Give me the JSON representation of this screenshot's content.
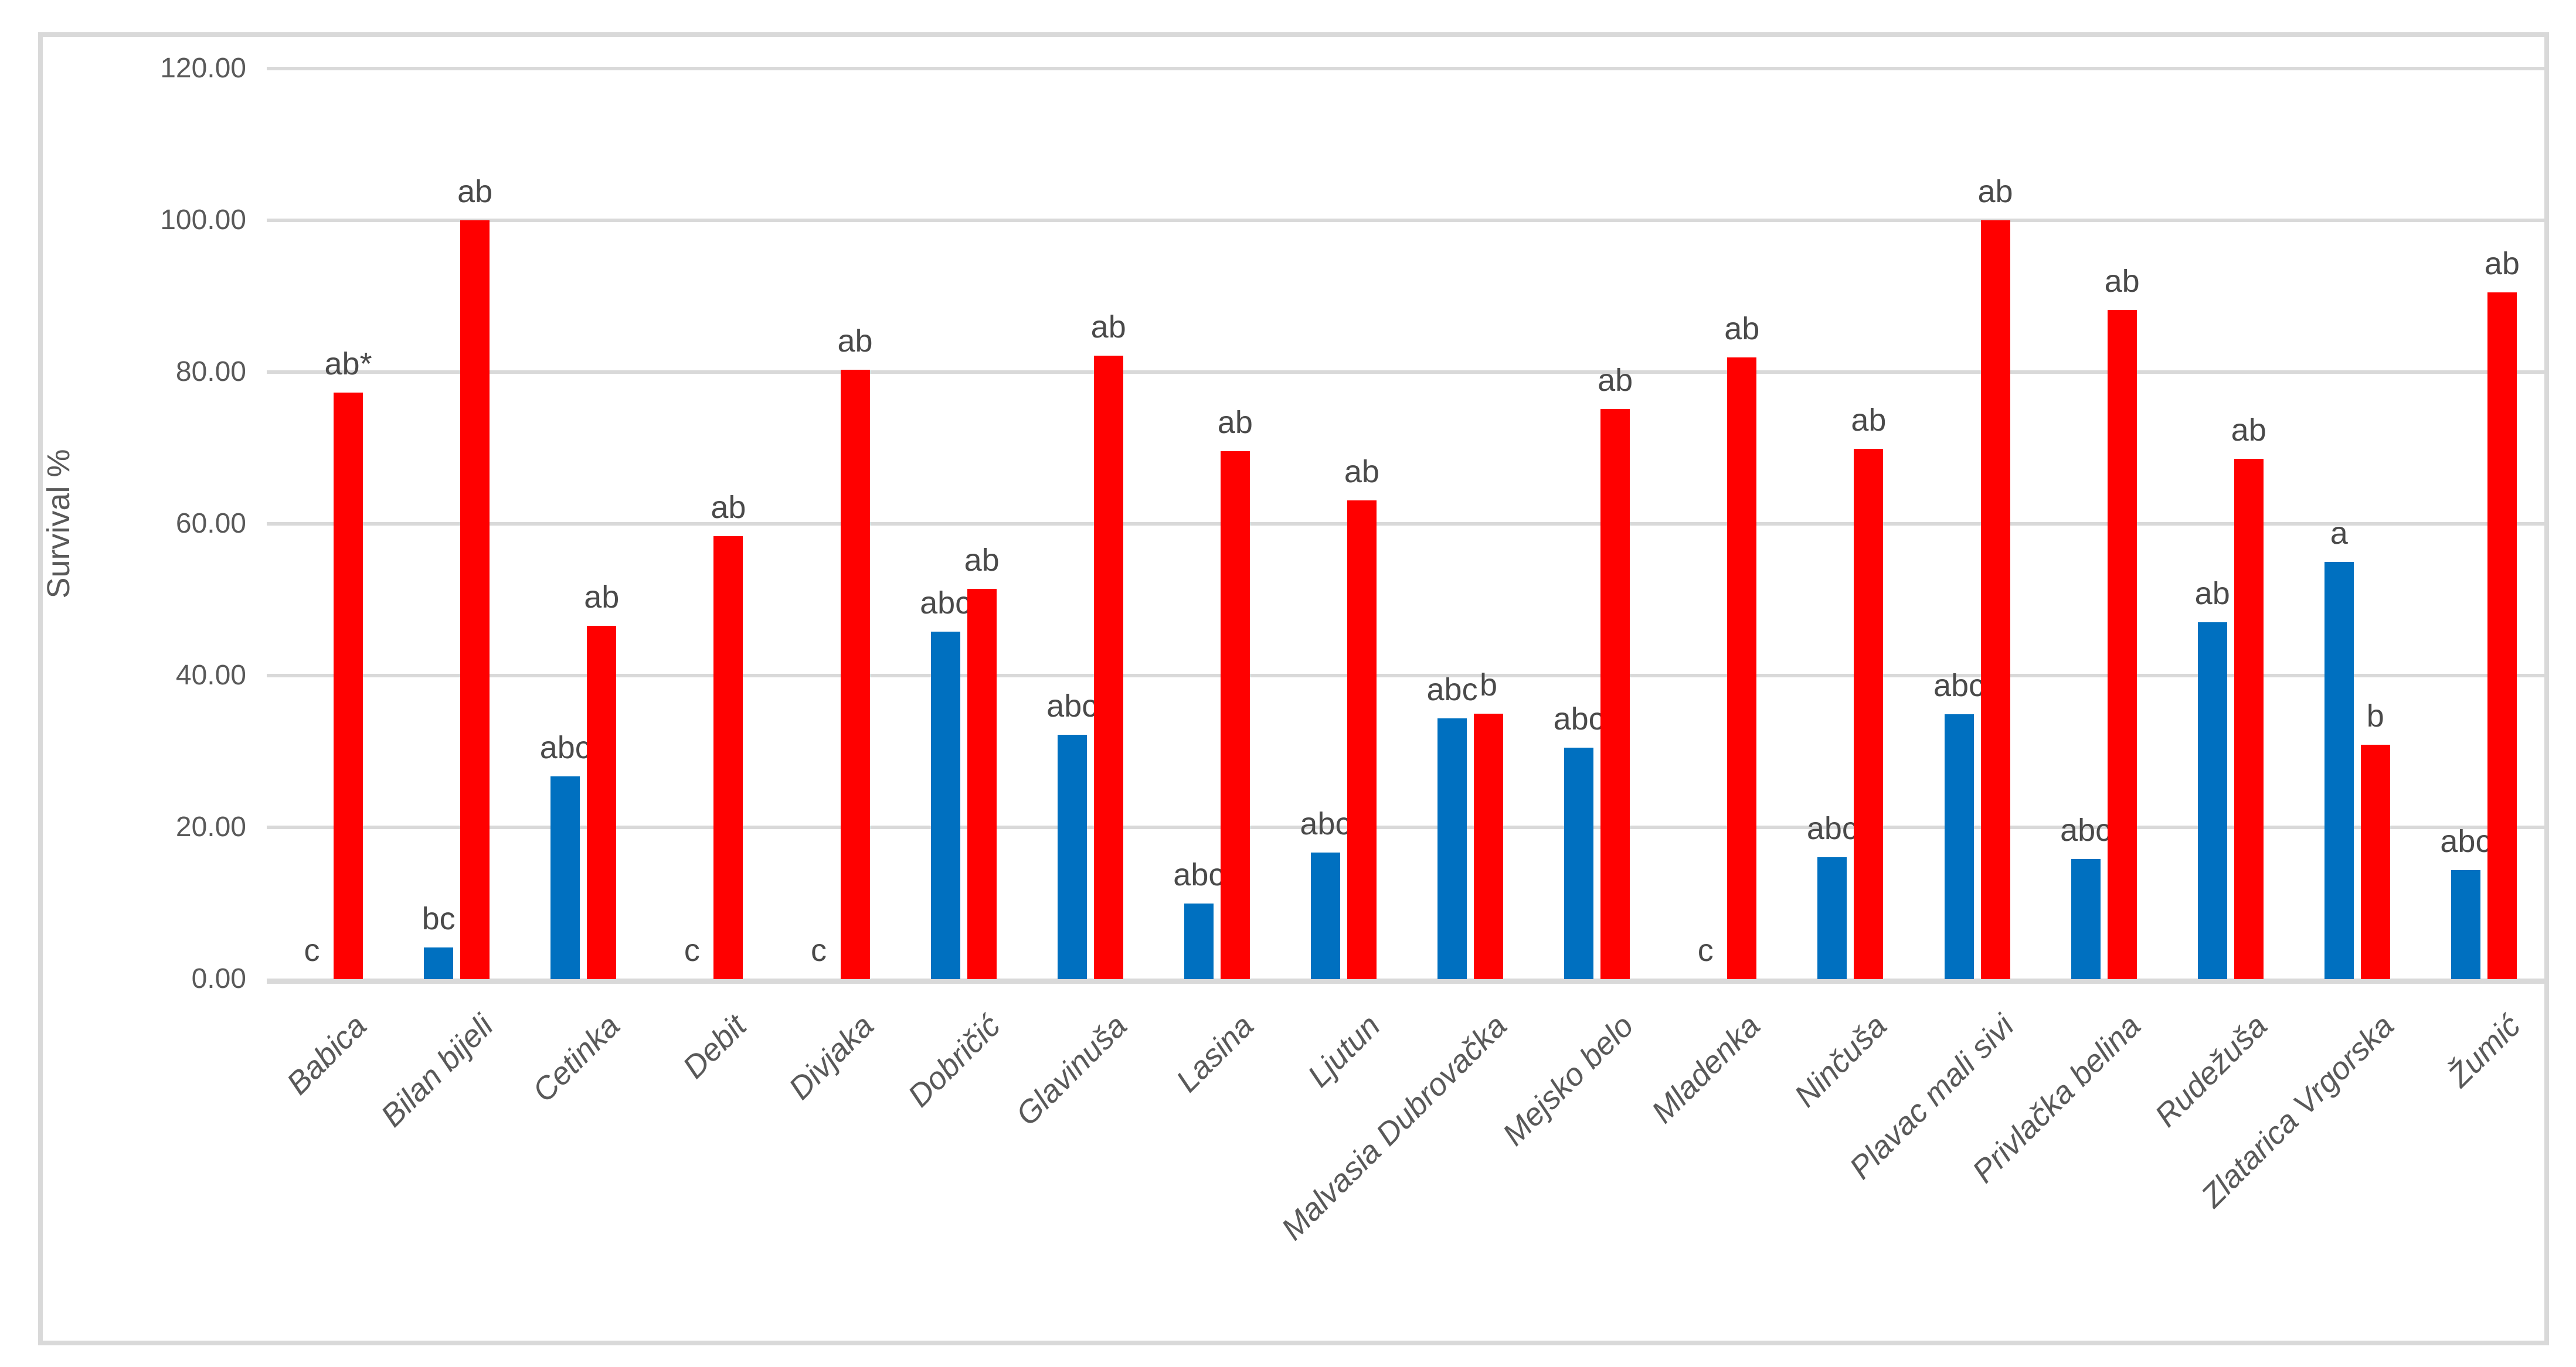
{
  "colors": {
    "series_blue": "#0070C0",
    "series_red": "#FF0000",
    "grid": "#D9D9D9",
    "axis_text": "#595959",
    "annotation_text": "#4a4a4a",
    "frame_border": "#D9D9D9",
    "background": "#ffffff"
  },
  "chart_data": {
    "type": "bar",
    "title": "",
    "xlabel": "",
    "ylabel": "Survival %",
    "ylim": [
      0,
      120
    ],
    "ytick_step": 20,
    "ytick_labels": [
      "0.00",
      "20.00",
      "40.00",
      "60.00",
      "80.00",
      "100.00",
      "120.00"
    ],
    "grid": true,
    "legend_position": "none",
    "categories": [
      "Babica",
      "Bilan bijeli",
      "Cetinka",
      "Debit",
      "Divjaka",
      "Dobričić",
      "Glavinuša",
      "Lasina",
      "Ljutun",
      "Malvasia Dubrovačka",
      "Mejsko belo",
      "Mladenka",
      "Ninčuša",
      "Plavac mali sivi",
      "Privlačka belina",
      "Rudežuša",
      "Zlatarica Vrgorska",
      "Žumić"
    ],
    "series": [
      {
        "name": "blue-series",
        "color": "#0070C0",
        "values": [
          0,
          4.2,
          26.7,
          0,
          0,
          45.8,
          32.2,
          10.0,
          16.7,
          34.4,
          30.5,
          0,
          16.1,
          34.9,
          15.8,
          47.0,
          55.0,
          14.4
        ],
        "labels": [
          "c",
          "bc",
          "abc",
          "c",
          "c",
          "abc",
          "abc",
          "abc",
          "abc",
          "abc",
          "abc",
          "c",
          "abc",
          "abc",
          "abc",
          "ab",
          "a",
          "abc"
        ]
      },
      {
        "name": "red-series",
        "color": "#FF0000",
        "values": [
          77.3,
          100.0,
          46.6,
          58.4,
          80.3,
          51.4,
          82.2,
          69.6,
          63.1,
          35.0,
          75.1,
          81.9,
          69.9,
          100.0,
          88.2,
          68.6,
          30.9,
          90.5
        ],
        "labels": [
          "ab*",
          "ab",
          "ab",
          "ab",
          "ab",
          "ab",
          "ab",
          "ab",
          "ab",
          "b",
          "ab",
          "ab",
          "ab",
          "ab",
          "ab",
          "ab",
          "b",
          "ab"
        ]
      }
    ]
  }
}
